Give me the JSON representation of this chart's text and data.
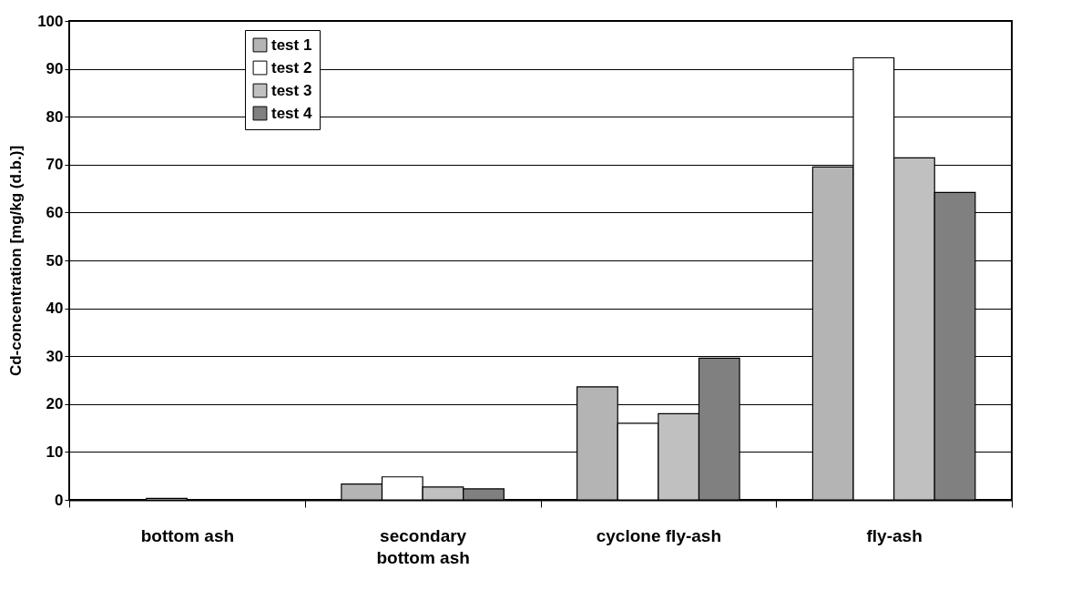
{
  "chart_data": {
    "type": "bar",
    "ylabel": "Cd-concentration [mg/kg (d.b.)]",
    "categories": [
      "bottom ash",
      "secondary bottom ash",
      "cyclone fly-ash",
      "fly-ash"
    ],
    "series": [
      {
        "name": "test 1",
        "color": "#b4b4b4",
        "values": [
          null,
          3.3,
          23.6,
          69.5
        ]
      },
      {
        "name": "test 2",
        "color": "#ffffff",
        "values": [
          0.3,
          4.8,
          16,
          92.3
        ]
      },
      {
        "name": "test 3",
        "color": "#c0c0c0",
        "values": [
          null,
          2.7,
          18,
          71.4
        ]
      },
      {
        "name": "test 4",
        "color": "#808080",
        "values": [
          null,
          2.3,
          29.6,
          64.2
        ]
      }
    ],
    "ylim": [
      0,
      100
    ],
    "yticks": [
      0,
      10,
      20,
      30,
      40,
      50,
      60,
      70,
      80,
      90,
      100
    ],
    "grid": "y",
    "legend": "top left"
  }
}
